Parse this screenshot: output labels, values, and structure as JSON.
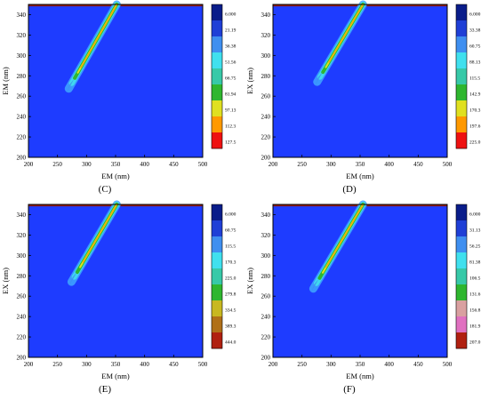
{
  "chart_data": [
    {
      "type": "heatmap",
      "panel_label": "(C)",
      "xlabel": "EM (nm)",
      "ylabel": "EM (nm)",
      "xlim": [
        200,
        500
      ],
      "ylim": [
        200,
        350
      ],
      "xticks": [
        "200",
        "250",
        "300",
        "350",
        "400",
        "450",
        "500"
      ],
      "yticks": [
        "200",
        "220",
        "240",
        "260",
        "280",
        "300",
        "320",
        "340"
      ],
      "colorbar": {
        "labels": [
          "6.000",
          "21.19",
          "36.38",
          "51.56",
          "66.75",
          "81.94",
          "97.13",
          "112.3",
          "127.5"
        ],
        "colors": [
          "#0a1d8a",
          "#1f3fd6",
          "#3f8ff0",
          "#40e0ee",
          "#37c9a8",
          "#2fb62f",
          "#e0e020",
          "#ff9900",
          "#ee1111"
        ]
      },
      "background_color": "#1e3cff",
      "streak": {
        "start": [
          265,
          263
        ],
        "end": [
          352,
          350
        ]
      },
      "top_line": {
        "y": 349
      }
    },
    {
      "type": "heatmap",
      "panel_label": "(D)",
      "xlabel": "EM (nm)",
      "ylabel": "EX (nm)",
      "xlim": [
        200,
        500
      ],
      "ylim": [
        200,
        350
      ],
      "xticks": [
        "200",
        "250",
        "300",
        "350",
        "400",
        "450",
        "500"
      ],
      "yticks": [
        "200",
        "220",
        "240",
        "260",
        "280",
        "300",
        "320",
        "340"
      ],
      "colorbar": {
        "labels": [
          "6.000",
          "33.38",
          "60.75",
          "88.13",
          "115.5",
          "142.9",
          "170.3",
          "197.6",
          "225.0"
        ],
        "colors": [
          "#0a1d8a",
          "#1f3fd6",
          "#3f8ff0",
          "#40e0ee",
          "#37c9a8",
          "#2fb62f",
          "#e0e020",
          "#ff9900",
          "#ee1111"
        ]
      },
      "background_color": "#1e3cff",
      "streak": {
        "start": [
          272,
          270
        ],
        "end": [
          355,
          350
        ]
      },
      "top_line": {
        "y": 349
      }
    },
    {
      "type": "heatmap",
      "panel_label": "(E)",
      "xlabel": "EM (nm)",
      "ylabel": "EX (nm)",
      "xlim": [
        200,
        500
      ],
      "ylim": [
        200,
        350
      ],
      "xticks": [
        "200",
        "250",
        "300",
        "350",
        "400",
        "450",
        "500"
      ],
      "yticks": [
        "200",
        "220",
        "240",
        "260",
        "280",
        "300",
        "320",
        "340"
      ],
      "colorbar": {
        "labels": [
          "6.000",
          "60.75",
          "115.5",
          "170.3",
          "225.0",
          "279.8",
          "334.5",
          "389.3",
          "444.0"
        ],
        "colors": [
          "#0a1d8a",
          "#1f3fd6",
          "#3f8ff0",
          "#40e0ee",
          "#37c9a8",
          "#2fb62f",
          "#c8b820",
          "#b07018",
          "#b02010"
        ]
      },
      "background_color": "#1e3cff",
      "streak": {
        "start": [
          270,
          270
        ],
        "end": [
          352,
          350
        ]
      },
      "top_line": {
        "y": 349
      }
    },
    {
      "type": "heatmap",
      "panel_label": "(F)",
      "xlabel": "EM (nm)",
      "ylabel": "EX (nm)",
      "xlim": [
        200,
        500
      ],
      "ylim": [
        200,
        350
      ],
      "xticks": [
        "200",
        "250",
        "300",
        "350",
        "400",
        "450",
        "500"
      ],
      "yticks": [
        "200",
        "220",
        "240",
        "260",
        "280",
        "300",
        "320",
        "340"
      ],
      "colorbar": {
        "labels": [
          "6.000",
          "31.13",
          "56.25",
          "81.38",
          "106.5",
          "131.6",
          "156.8",
          "181.9",
          "207.0"
        ],
        "colors": [
          "#0a1d8a",
          "#1f3fd6",
          "#3f8ff0",
          "#40e0ee",
          "#37c9a8",
          "#2fb62f",
          "#d9a0a0",
          "#e070c0",
          "#b02010"
        ]
      },
      "background_color": "#1e3cff",
      "streak": {
        "start": [
          265,
          263
        ],
        "end": [
          355,
          350
        ]
      },
      "top_line": {
        "y": 349
      }
    }
  ]
}
